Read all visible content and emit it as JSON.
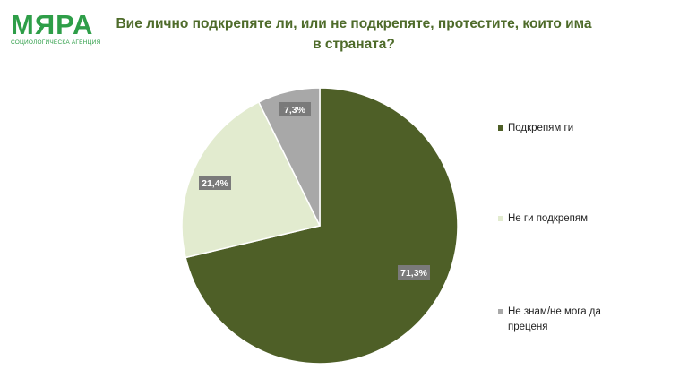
{
  "logo": {
    "name": "МЯРА",
    "subtitle": "СОЦИОЛОГИЧЕСКА АГЕНЦИЯ"
  },
  "title_line1": "Вие лично подкрепяте ли, или не подкрепяте, протестите, които има",
  "title_line2": "в страната?",
  "chart_data": {
    "type": "pie",
    "title": "Вие лично подкрепяте ли, или не подкрепяте, протестите, които има в страната?",
    "slices": [
      {
        "label": "Подкрепям ги",
        "value": 71.3,
        "value_label": "71,3%",
        "color": "#4e5f27"
      },
      {
        "label": "Не ги подкрепям",
        "value": 21.4,
        "value_label": "21,4%",
        "color": "#e2ebcf"
      },
      {
        "label": "Не знам/не мога да преценя",
        "value": 7.3,
        "value_label": "7,3%",
        "color": "#a8a8a8"
      }
    ],
    "start_angle": "12 o'clock",
    "direction": "clockwise",
    "legend_position": "right"
  }
}
